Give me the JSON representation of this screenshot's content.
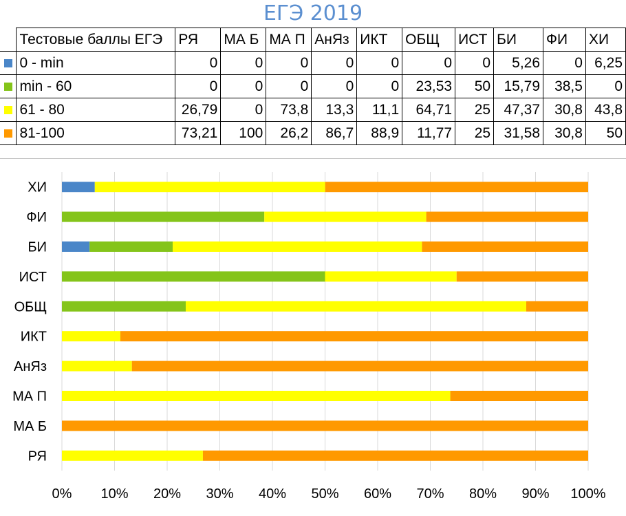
{
  "title": "ЕГЭ 2019",
  "table": {
    "corner": "Тестовые баллы ЕГЭ"
  },
  "chart_data": {
    "type": "bar",
    "orientation": "horizontal",
    "stacked": "percent",
    "categories": [
      "РЯ",
      "МА Б",
      "МА П",
      "АнЯз",
      "ИКТ",
      "ОБЩ",
      "ИСТ",
      "БИ",
      "ФИ",
      "ХИ"
    ],
    "series": [
      {
        "name": "0 - min",
        "color": "#4a86c8",
        "values": [
          0,
          0,
          0,
          0,
          0,
          0,
          0,
          5.26,
          0,
          6.25
        ],
        "labels": [
          "0",
          "0",
          "0",
          "0",
          "0",
          "0",
          "0",
          "5,26",
          "0",
          "6,25"
        ]
      },
      {
        "name": "min - 60",
        "color": "#84c41a",
        "values": [
          0,
          0,
          0,
          0,
          0,
          23.53,
          50,
          15.79,
          38.5,
          0
        ],
        "labels": [
          "0",
          "0",
          "0",
          "0",
          "0",
          "23,53",
          "50",
          "15,79",
          "38,5",
          "0"
        ]
      },
      {
        "name": "61 - 80",
        "color": "#ffff00",
        "values": [
          26.79,
          0,
          73.8,
          13.3,
          11.1,
          64.71,
          25,
          47.37,
          30.8,
          43.8
        ],
        "labels": [
          "26,79",
          "0",
          "73,8",
          "13,3",
          "11,1",
          "64,71",
          "25",
          "47,37",
          "30,8",
          "43,8"
        ]
      },
      {
        "name": "81-100",
        "color": "#ff9900",
        "values": [
          73.21,
          100,
          26.2,
          86.7,
          88.9,
          11.77,
          25,
          31.58,
          30.8,
          50
        ],
        "labels": [
          "73,21",
          "100",
          "26,2",
          "86,7",
          "88,9",
          "11,77",
          "25",
          "31,58",
          "30,8",
          "50"
        ]
      }
    ],
    "xticks": [
      "0%",
      "10%",
      "20%",
      "30%",
      "40%",
      "50%",
      "60%",
      "70%",
      "80%",
      "90%",
      "100%"
    ],
    "xlim": [
      0,
      100
    ],
    "grid": "vertical",
    "legend": "table-left",
    "xlabel": "",
    "ylabel": ""
  }
}
